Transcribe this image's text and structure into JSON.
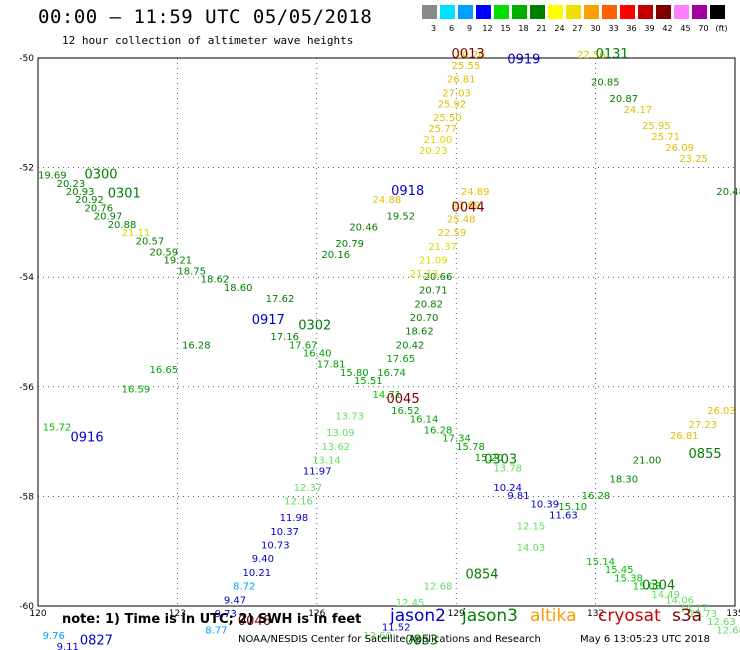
{
  "header": {
    "title": "00:00 – 11:59 UTC 05/05/2018",
    "subtitle": "12 hour collection of altimeter wave heights"
  },
  "color_scale": {
    "labels": [
      "3",
      "6",
      "9",
      "12",
      "15",
      "18",
      "21",
      "24",
      "27",
      "30",
      "33",
      "36",
      "39",
      "42",
      "45",
      "70",
      "(ft)"
    ],
    "colors": [
      "#8a8a8a",
      "#00e0ff",
      "#00a0ff",
      "#0000ff",
      "#00e000",
      "#00b000",
      "#008000",
      "#ffff00",
      "#f0e000",
      "#ffa000",
      "#ff6000",
      "#ff0000",
      "#c00000",
      "#800000",
      "#ff80ff",
      "#a000a0",
      "#000000"
    ]
  },
  "axes": {
    "lon_ticks": [
      "120",
      "123",
      "126",
      "129",
      "132",
      "135"
    ],
    "lat_ticks": [
      "-50",
      "-52",
      "-54",
      "-56",
      "-58",
      "-60"
    ]
  },
  "map": {
    "points": [
      {
        "t": "20.20",
        "c": "#e0c000",
        "lon": 129.0,
        "lat": -50.0
      },
      {
        "t": "25.55",
        "c": "#e0c000",
        "lon": 128.9,
        "lat": -50.2
      },
      {
        "t": "26.81",
        "c": "#e0c000",
        "lon": 128.8,
        "lat": -50.45
      },
      {
        "t": "27.03",
        "c": "#e0c000",
        "lon": 128.7,
        "lat": -50.7
      },
      {
        "t": "25.92",
        "c": "#e0c000",
        "lon": 128.6,
        "lat": -50.9
      },
      {
        "t": "25.50",
        "c": "#e0c000",
        "lon": 128.5,
        "lat": -51.15
      },
      {
        "t": "25.77",
        "c": "#e0c000",
        "lon": 128.4,
        "lat": -51.35
      },
      {
        "t": "21.00",
        "c": "#d8d800",
        "lon": 128.3,
        "lat": -51.55
      },
      {
        "t": "20.23",
        "c": "#d8d800",
        "lon": 128.2,
        "lat": -51.75
      },
      {
        "t": "24.88",
        "c": "#e0c000",
        "lon": 127.2,
        "lat": -52.65
      },
      {
        "t": "19.52",
        "c": "#008000",
        "lon": 127.5,
        "lat": -52.95
      },
      {
        "t": "20.46",
        "c": "#008000",
        "lon": 126.7,
        "lat": -53.15
      },
      {
        "t": "20.79",
        "c": "#008000",
        "lon": 126.4,
        "lat": -53.45
      },
      {
        "t": "20.16",
        "c": "#008000",
        "lon": 126.1,
        "lat": -53.65
      },
      {
        "t": "17.62",
        "c": "#008000",
        "lon": 124.9,
        "lat": -54.45
      },
      {
        "t": "16.28",
        "c": "#008000",
        "lon": 123.1,
        "lat": -55.3
      },
      {
        "t": "16.65",
        "c": "#00a000",
        "lon": 122.4,
        "lat": -55.75
      },
      {
        "t": "16.59",
        "c": "#00a000",
        "lon": 121.8,
        "lat": -56.1
      },
      {
        "t": "15.72",
        "c": "#00c000",
        "lon": 120.1,
        "lat": -56.8
      },
      {
        "t": "19.69",
        "c": "#008000",
        "lon": 120.0,
        "lat": -52.2
      },
      {
        "t": "20.23",
        "c": "#008000",
        "lon": 120.4,
        "lat": -52.35
      },
      {
        "t": "20.93",
        "c": "#008000",
        "lon": 120.6,
        "lat": -52.5
      },
      {
        "t": "20.92",
        "c": "#008000",
        "lon": 120.8,
        "lat": -52.65
      },
      {
        "t": "20.76",
        "c": "#008000",
        "lon": 121.0,
        "lat": -52.8
      },
      {
        "t": "20.97",
        "c": "#008000",
        "lon": 121.2,
        "lat": -52.95
      },
      {
        "t": "20.88",
        "c": "#008000",
        "lon": 121.5,
        "lat": -53.1
      },
      {
        "t": "21.11",
        "c": "#d8d800",
        "lon": 121.8,
        "lat": -53.25
      },
      {
        "t": "20.57",
        "c": "#008000",
        "lon": 122.1,
        "lat": -53.4
      },
      {
        "t": "20.59",
        "c": "#008000",
        "lon": 122.4,
        "lat": -53.6
      },
      {
        "t": "19.21",
        "c": "#008000",
        "lon": 122.7,
        "lat": -53.75
      },
      {
        "t": "18.75",
        "c": "#008000",
        "lon": 123.0,
        "lat": -53.95
      },
      {
        "t": "18.62",
        "c": "#008000",
        "lon": 123.5,
        "lat": -54.1
      },
      {
        "t": "18.60",
        "c": "#008000",
        "lon": 124.0,
        "lat": -54.25
      },
      {
        "t": "17.16",
        "c": "#008000",
        "lon": 125.0,
        "lat": -55.15
      },
      {
        "t": "17.67",
        "c": "#00a000",
        "lon": 125.4,
        "lat": -55.3
      },
      {
        "t": "16.40",
        "c": "#00a000",
        "lon": 125.7,
        "lat": -55.45
      },
      {
        "t": "17.81",
        "c": "#00a000",
        "lon": 126.0,
        "lat": -55.65
      },
      {
        "t": "15.80",
        "c": "#00a000",
        "lon": 126.5,
        "lat": -55.8
      },
      {
        "t": "15.51",
        "c": "#00a000",
        "lon": 126.8,
        "lat": -55.95
      },
      {
        "t": "14.71",
        "c": "#00c000",
        "lon": 127.2,
        "lat": -56.2
      },
      {
        "t": "16.52",
        "c": "#00a000",
        "lon": 127.6,
        "lat": -56.5
      },
      {
        "t": "16.14",
        "c": "#00a000",
        "lon": 128.0,
        "lat": -56.65
      },
      {
        "t": "16.28",
        "c": "#00a000",
        "lon": 128.3,
        "lat": -56.85
      },
      {
        "t": "17.34",
        "c": "#00a000",
        "lon": 128.7,
        "lat": -57.0
      },
      {
        "t": "15.78",
        "c": "#00a000",
        "lon": 129.0,
        "lat": -57.15
      },
      {
        "t": "15.20",
        "c": "#00a000",
        "lon": 129.4,
        "lat": -57.35
      },
      {
        "t": "13.78",
        "c": "#60e060",
        "lon": 129.8,
        "lat": -57.55
      },
      {
        "t": "14.03",
        "c": "#60e060",
        "lon": 130.3,
        "lat": -59.0
      },
      {
        "t": "15.14",
        "c": "#00c000",
        "lon": 131.8,
        "lat": -59.25
      },
      {
        "t": "15.45",
        "c": "#00c000",
        "lon": 132.2,
        "lat": -59.4
      },
      {
        "t": "15.38",
        "c": "#00c000",
        "lon": 132.4,
        "lat": -59.55
      },
      {
        "t": "15.03",
        "c": "#00c000",
        "lon": 132.8,
        "lat": -59.7
      },
      {
        "t": "14.49",
        "c": "#60e060",
        "lon": 133.2,
        "lat": -59.85
      },
      {
        "t": "14.06",
        "c": "#60e060",
        "lon": 133.5,
        "lat": -59.95
      },
      {
        "t": "14.17",
        "c": "#60e060",
        "lon": 133.8,
        "lat": -60.1
      },
      {
        "t": "13.73",
        "c": "#60e060",
        "lon": 134.0,
        "lat": -60.2
      },
      {
        "t": "12.63",
        "c": "#60e060",
        "lon": 134.4,
        "lat": -60.35
      },
      {
        "t": "12.68",
        "c": "#60e060",
        "lon": 134.6,
        "lat": -60.5
      },
      {
        "t": "20.66",
        "c": "#008000",
        "lon": 128.3,
        "lat": -54.05
      },
      {
        "t": "20.71",
        "c": "#008000",
        "lon": 128.2,
        "lat": -54.3
      },
      {
        "t": "20.82",
        "c": "#008000",
        "lon": 128.1,
        "lat": -54.55
      },
      {
        "t": "20.70",
        "c": "#008000",
        "lon": 128.0,
        "lat": -54.8
      },
      {
        "t": "18.62",
        "c": "#008000",
        "lon": 127.9,
        "lat": -55.05
      },
      {
        "t": "20.42",
        "c": "#008000",
        "lon": 127.7,
        "lat": -55.3
      },
      {
        "t": "17.65",
        "c": "#00a000",
        "lon": 127.5,
        "lat": -55.55
      },
      {
        "t": "16.74",
        "c": "#00a000",
        "lon": 127.3,
        "lat": -55.8
      },
      {
        "t": "13.73",
        "c": "#60e060",
        "lon": 126.4,
        "lat": -56.6
      },
      {
        "t": "13.09",
        "c": "#60e060",
        "lon": 126.2,
        "lat": -56.9
      },
      {
        "t": "13.62",
        "c": "#60e060",
        "lon": 126.1,
        "lat": -57.15
      },
      {
        "t": "13.14",
        "c": "#60e060",
        "lon": 125.9,
        "lat": -57.4
      },
      {
        "t": "11.97",
        "c": "#0000cc",
        "lon": 125.7,
        "lat": -57.6
      },
      {
        "t": "12.37",
        "c": "#60e060",
        "lon": 125.5,
        "lat": -57.9
      },
      {
        "t": "12.16",
        "c": "#60e060",
        "lon": 125.3,
        "lat": -58.15
      },
      {
        "t": "11.98",
        "c": "#0000cc",
        "lon": 125.2,
        "lat": -58.45
      },
      {
        "t": "10.37",
        "c": "#0000cc",
        "lon": 125.0,
        "lat": -58.7
      },
      {
        "t": "10.73",
        "c": "#0000cc",
        "lon": 124.8,
        "lat": -58.95
      },
      {
        "t": "9.40",
        "c": "#0000cc",
        "lon": 124.6,
        "lat": -59.2
      },
      {
        "t": "10.21",
        "c": "#0000cc",
        "lon": 124.4,
        "lat": -59.45
      },
      {
        "t": "8.72",
        "c": "#00a0ff",
        "lon": 124.2,
        "lat": -59.7
      },
      {
        "t": "9.47",
        "c": "#0000cc",
        "lon": 124.0,
        "lat": -59.95
      },
      {
        "t": "9.73",
        "c": "#0000cc",
        "lon": 123.8,
        "lat": -60.2
      },
      {
        "t": "8.77",
        "c": "#00a0ff",
        "lon": 123.6,
        "lat": -60.5
      },
      {
        "t": "24.89",
        "c": "#e0c000",
        "lon": 129.1,
        "lat": -52.5
      },
      {
        "t": "23.69",
        "c": "#e0c000",
        "lon": 128.9,
        "lat": -52.75
      },
      {
        "t": "25.48",
        "c": "#e0c000",
        "lon": 128.8,
        "lat": -53.0
      },
      {
        "t": "22.59",
        "c": "#e0c000",
        "lon": 128.6,
        "lat": -53.25
      },
      {
        "t": "21.37",
        "c": "#d8d800",
        "lon": 128.4,
        "lat": -53.5
      },
      {
        "t": "21.09",
        "c": "#d8d800",
        "lon": 128.2,
        "lat": -53.75
      },
      {
        "t": "21.13",
        "c": "#d8d800",
        "lon": 128.0,
        "lat": -54.0
      },
      {
        "t": "22.56",
        "c": "#e0c000",
        "lon": 131.6,
        "lat": -50.0
      },
      {
        "t": "20.85",
        "c": "#008000",
        "lon": 131.9,
        "lat": -50.5
      },
      {
        "t": "20.87",
        "c": "#008000",
        "lon": 132.3,
        "lat": -50.8
      },
      {
        "t": "24.17",
        "c": "#e0c000",
        "lon": 132.6,
        "lat": -51.0
      },
      {
        "t": "25.95",
        "c": "#e0c000",
        "lon": 133.0,
        "lat": -51.3
      },
      {
        "t": "25.71",
        "c": "#e0c000",
        "lon": 133.2,
        "lat": -51.5
      },
      {
        "t": "26.09",
        "c": "#e0c000",
        "lon": 133.5,
        "lat": -51.7
      },
      {
        "t": "23.25",
        "c": "#e0c000",
        "lon": 133.8,
        "lat": -51.9
      },
      {
        "t": "20.48",
        "c": "#008000",
        "lon": 134.6,
        "lat": -52.5
      },
      {
        "t": "26.03",
        "c": "#e0c000",
        "lon": 134.4,
        "lat": -56.5
      },
      {
        "t": "27.23",
        "c": "#e0c000",
        "lon": 134.0,
        "lat": -56.75
      },
      {
        "t": "26.81",
        "c": "#e0c000",
        "lon": 133.6,
        "lat": -56.95
      },
      {
        "t": "21.00",
        "c": "#008000",
        "lon": 132.8,
        "lat": -57.4
      },
      {
        "t": "18.30",
        "c": "#008000",
        "lon": 132.3,
        "lat": -57.75
      },
      {
        "t": "16.28",
        "c": "#00a000",
        "lon": 131.7,
        "lat": -58.05
      },
      {
        "t": "15.10",
        "c": "#00a000",
        "lon": 131.2,
        "lat": -58.25
      },
      {
        "t": "12.15",
        "c": "#60e060",
        "lon": 130.3,
        "lat": -58.6
      },
      {
        "t": "12.68",
        "c": "#60e060",
        "lon": 128.3,
        "lat": -59.7
      },
      {
        "t": "12.45",
        "c": "#60e060",
        "lon": 127.7,
        "lat": -60.0
      },
      {
        "t": "12.60",
        "c": "#60e060",
        "lon": 127.0,
        "lat": -60.6
      },
      {
        "t": "11.52",
        "c": "#0000cc",
        "lon": 127.4,
        "lat": -60.45
      },
      {
        "t": "10.24",
        "c": "#0000cc",
        "lon": 129.8,
        "lat": -57.9
      },
      {
        "t": "9.81",
        "c": "#0000cc",
        "lon": 130.1,
        "lat": -58.05
      },
      {
        "t": "10.39",
        "c": "#0000cc",
        "lon": 130.6,
        "lat": -58.2
      },
      {
        "t": "11.63",
        "c": "#0000cc",
        "lon": 131.0,
        "lat": -58.4
      },
      {
        "t": "9.76",
        "c": "#00a0ff",
        "lon": 120.1,
        "lat": -60.6
      },
      {
        "t": "9.11",
        "c": "#0000cc",
        "lon": 120.4,
        "lat": -60.8
      }
    ],
    "pass_times": [
      {
        "t": "0013",
        "c": "#800000",
        "lon": 128.9,
        "lat": -50.0
      },
      {
        "t": "0919",
        "c": "#0000cc",
        "lon": 130.1,
        "lat": -50.1
      },
      {
        "t": "0131",
        "c": "#008000",
        "lon": 132.0,
        "lat": -50.0
      },
      {
        "t": "0300",
        "c": "#008000",
        "lon": 121.0,
        "lat": -52.2
      },
      {
        "t": "0301",
        "c": "#008000",
        "lon": 121.5,
        "lat": -52.55
      },
      {
        "t": "0918",
        "c": "#0000cc",
        "lon": 127.6,
        "lat": -52.5
      },
      {
        "t": "0044",
        "c": "#800000",
        "lon": 128.9,
        "lat": -52.8
      },
      {
        "t": "0917",
        "c": "#0000cc",
        "lon": 124.6,
        "lat": -54.85
      },
      {
        "t": "0302",
        "c": "#008000",
        "lon": 125.6,
        "lat": -54.95
      },
      {
        "t": "0045",
        "c": "#800000",
        "lon": 127.5,
        "lat": -56.3
      },
      {
        "t": "0916",
        "c": "#0000cc",
        "lon": 120.7,
        "lat": -57.0
      },
      {
        "t": "0303",
        "c": "#008000",
        "lon": 129.6,
        "lat": -57.4
      },
      {
        "t": "0855",
        "c": "#008000",
        "lon": 134.0,
        "lat": -57.3
      },
      {
        "t": "0854",
        "c": "#008000",
        "lon": 129.2,
        "lat": -59.5
      },
      {
        "t": "0304",
        "c": "#008000",
        "lon": 133.0,
        "lat": -59.7
      },
      {
        "t": "0046",
        "c": "#800000",
        "lon": 124.3,
        "lat": -60.35
      },
      {
        "t": "0853",
        "c": "#008000",
        "lon": 127.9,
        "lat": -60.7
      },
      {
        "t": "0827",
        "c": "#0000cc",
        "lon": 120.9,
        "lat": -60.7
      }
    ]
  },
  "footer": {
    "note": "note: 1) Time is in UTC; 2) SWH is in feet",
    "legend": [
      {
        "name": "jason2",
        "color": "#0000cc"
      },
      {
        "name": "jason3",
        "color": "#008000"
      },
      {
        "name": "altika",
        "color": "#ff9900"
      },
      {
        "name": "cryosat",
        "color": "#cc0000"
      },
      {
        "name": "s3a",
        "color": "#800000"
      }
    ],
    "credit": "NOAA/NESDIS Center for Satellite Applications and Research",
    "stamp": "May  6 13:05:23 UTC 2018"
  }
}
